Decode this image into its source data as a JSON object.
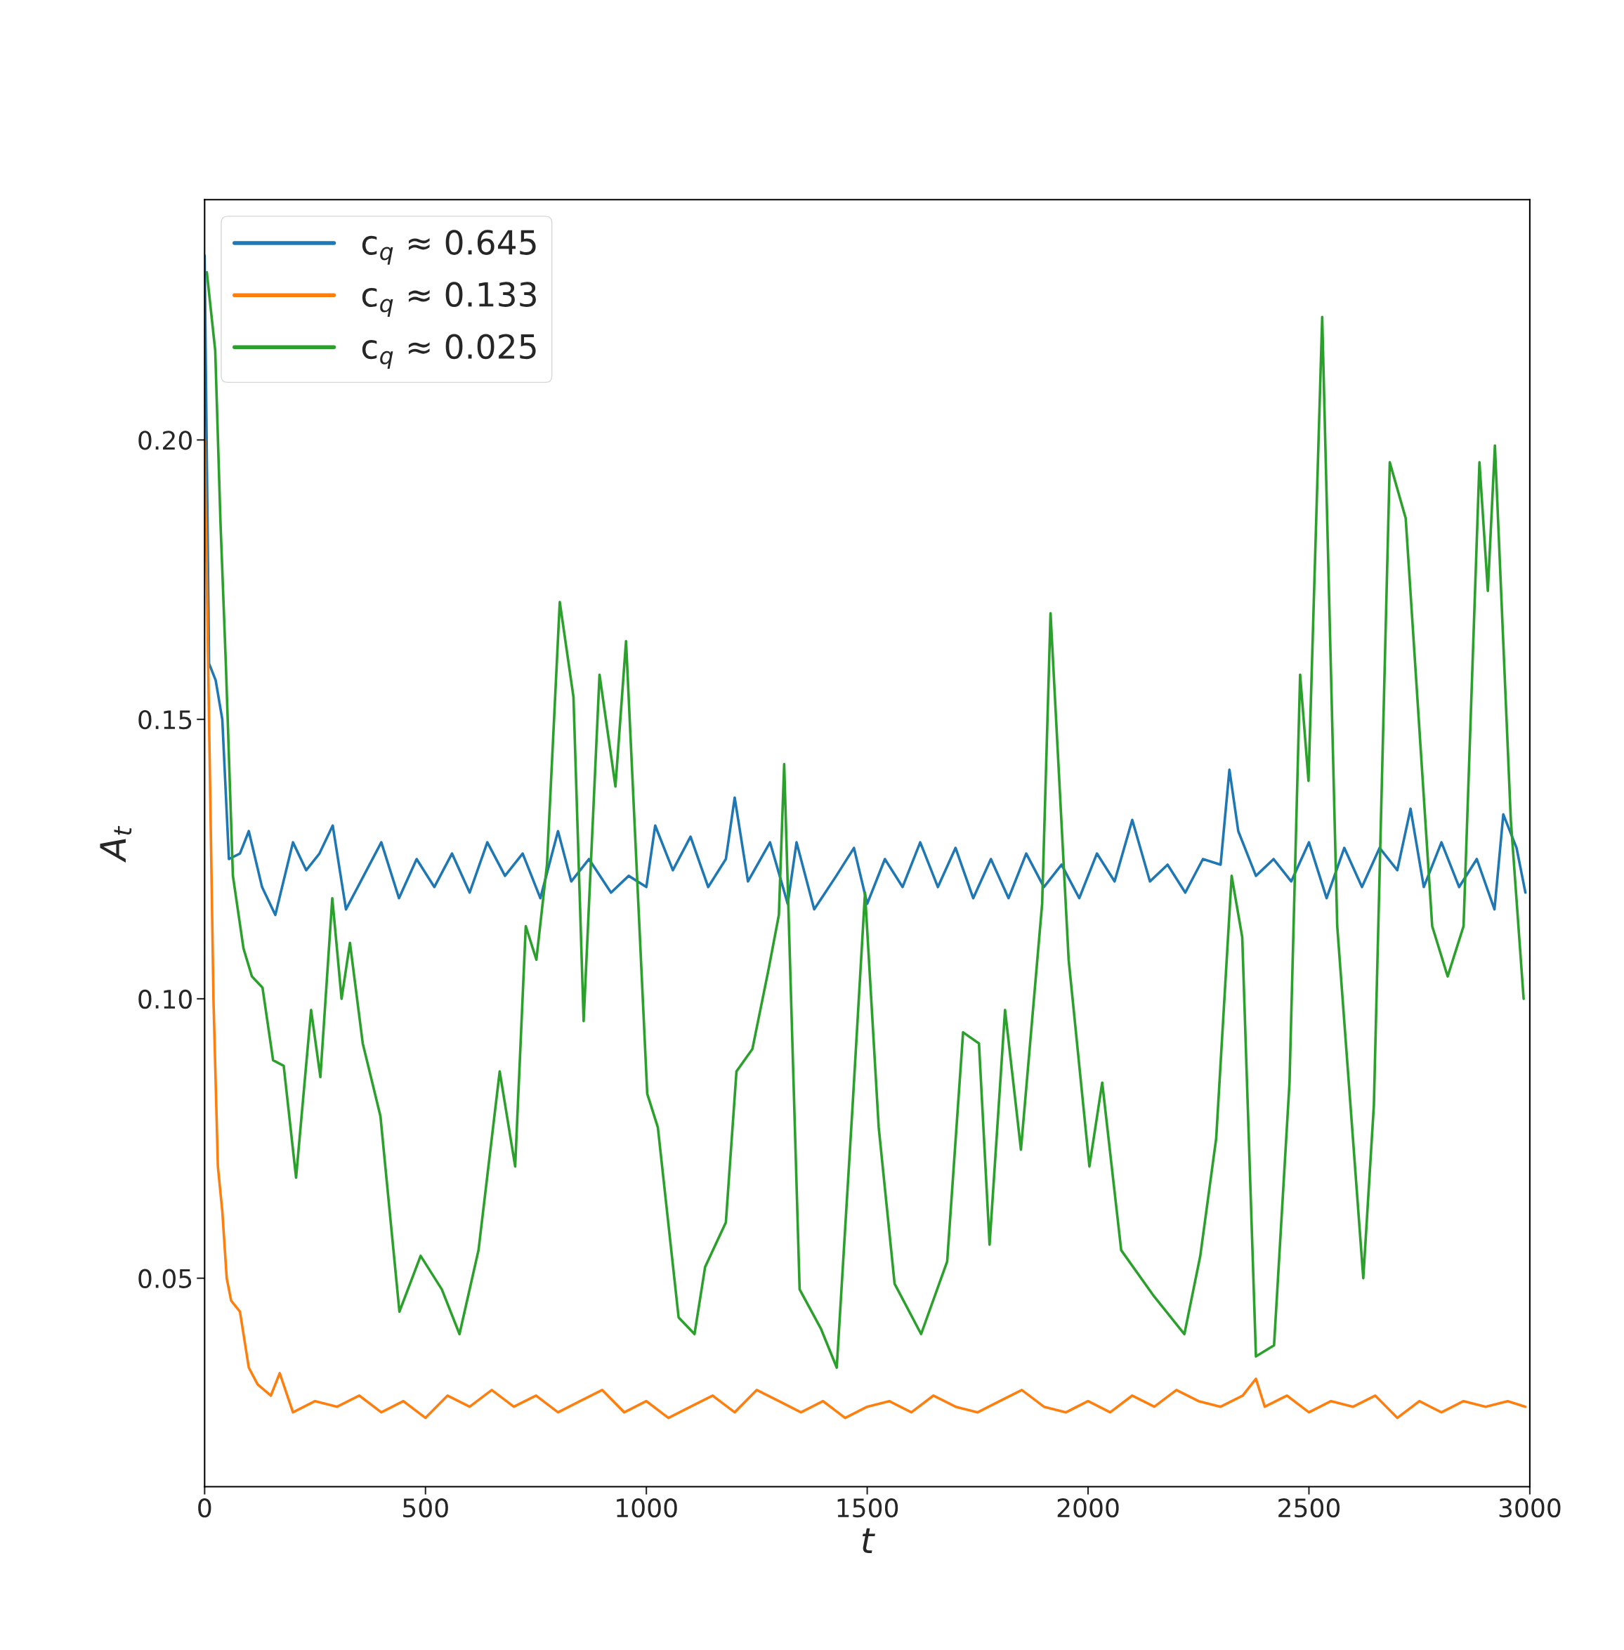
{
  "chart_data": {
    "type": "line",
    "xlabel": "t",
    "ylabel": "A$_{t}$",
    "xlim": [
      0,
      3000
    ],
    "ylim": [
      0.0127,
      0.243
    ],
    "xticks": [
      0,
      500,
      1000,
      1500,
      2000,
      2500,
      3000
    ],
    "yticks": [
      0.05,
      {
        "value": 0.1,
        "label": "0.10"
      },
      0.15,
      {
        "value": 0.2,
        "label": "0.20"
      }
    ],
    "grid": false,
    "legend": "top left",
    "marker": "none",
    "line_style": "solid",
    "series": [
      {
        "name": "c$_{q}$ ≈ 0.645",
        "color": "#1f77b4",
        "x": [
          0,
          10,
          25,
          40,
          55,
          80,
          100,
          130,
          160,
          200,
          230,
          260,
          290,
          320,
          360,
          400,
          440,
          480,
          520,
          560,
          600,
          640,
          680,
          720,
          760,
          800,
          830,
          870,
          920,
          960,
          1000,
          1020,
          1060,
          1100,
          1140,
          1180,
          1200,
          1230,
          1280,
          1320,
          1340,
          1380,
          1430,
          1470,
          1500,
          1540,
          1580,
          1620,
          1660,
          1700,
          1740,
          1780,
          1820,
          1860,
          1900,
          1940,
          1980,
          2020,
          2060,
          2100,
          2140,
          2180,
          2220,
          2260,
          2300,
          2320,
          2340,
          2380,
          2420,
          2460,
          2500,
          2540,
          2580,
          2620,
          2660,
          2700,
          2730,
          2760,
          2800,
          2840,
          2880,
          2920,
          2940,
          2970,
          2990
        ],
        "values": [
          0.233,
          0.16,
          0.157,
          0.15,
          0.125,
          0.126,
          0.13,
          0.12,
          0.115,
          0.128,
          0.123,
          0.126,
          0.131,
          0.116,
          0.122,
          0.128,
          0.118,
          0.125,
          0.12,
          0.126,
          0.119,
          0.128,
          0.122,
          0.126,
          0.118,
          0.13,
          0.121,
          0.125,
          0.119,
          0.122,
          0.12,
          0.131,
          0.123,
          0.129,
          0.12,
          0.125,
          0.136,
          0.121,
          0.128,
          0.117,
          0.128,
          0.116,
          0.122,
          0.127,
          0.117,
          0.125,
          0.12,
          0.128,
          0.12,
          0.127,
          0.118,
          0.125,
          0.118,
          0.126,
          0.12,
          0.124,
          0.118,
          0.126,
          0.121,
          0.132,
          0.121,
          0.124,
          0.119,
          0.125,
          0.124,
          0.141,
          0.13,
          0.122,
          0.125,
          0.121,
          0.128,
          0.118,
          0.127,
          0.12,
          0.127,
          0.123,
          0.134,
          0.12,
          0.128,
          0.12,
          0.125,
          0.116,
          0.133,
          0.127,
          0.119
        ]
      },
      {
        "name": "c$_{q}$ ≈ 0.133",
        "color": "#ff7f0e",
        "x": [
          0,
          10,
          20,
          30,
          40,
          50,
          60,
          80,
          100,
          120,
          150,
          170,
          200,
          250,
          300,
          350,
          400,
          450,
          500,
          550,
          600,
          650,
          700,
          750,
          800,
          850,
          900,
          950,
          1000,
          1050,
          1100,
          1150,
          1200,
          1250,
          1300,
          1350,
          1400,
          1450,
          1500,
          1550,
          1600,
          1650,
          1700,
          1750,
          1800,
          1850,
          1900,
          1950,
          2000,
          2050,
          2100,
          2150,
          2200,
          2250,
          2300,
          2350,
          2380,
          2400,
          2450,
          2500,
          2550,
          2600,
          2650,
          2700,
          2750,
          2800,
          2850,
          2900,
          2950,
          2990
        ],
        "values": [
          0.2,
          0.15,
          0.1,
          0.07,
          0.062,
          0.05,
          0.046,
          0.044,
          0.034,
          0.031,
          0.029,
          0.033,
          0.026,
          0.028,
          0.027,
          0.029,
          0.026,
          0.028,
          0.025,
          0.029,
          0.027,
          0.03,
          0.027,
          0.029,
          0.026,
          0.028,
          0.03,
          0.026,
          0.028,
          0.025,
          0.027,
          0.029,
          0.026,
          0.03,
          0.028,
          0.026,
          0.028,
          0.025,
          0.027,
          0.028,
          0.026,
          0.029,
          0.027,
          0.026,
          0.028,
          0.03,
          0.027,
          0.026,
          0.028,
          0.026,
          0.029,
          0.027,
          0.03,
          0.028,
          0.027,
          0.029,
          0.032,
          0.027,
          0.029,
          0.026,
          0.028,
          0.027,
          0.029,
          0.025,
          0.028,
          0.026,
          0.028,
          0.027,
          0.028,
          0.027
        ]
      },
      {
        "name": "c$_{q}$ ≈ 0.025",
        "color": "#2ca02c",
        "x": [
          5,
          24,
          36,
          48,
          64,
          88,
          107,
          131,
          155,
          179,
          207,
          241,
          262,
          289,
          310,
          329,
          358,
          398,
          441,
          489,
          537,
          577,
          620,
          668,
          703,
          727,
          751,
          775,
          804,
          835,
          858,
          894,
          930,
          954,
          1002,
          1026,
          1073,
          1109,
          1133,
          1180,
          1204,
          1240,
          1276,
          1300,
          1312,
          1347,
          1395,
          1431,
          1467,
          1495,
          1526,
          1562,
          1622,
          1681,
          1717,
          1753,
          1777,
          1812,
          1848,
          1896,
          1915,
          1956,
          2003,
          2032,
          2075,
          2147,
          2218,
          2254,
          2290,
          2325,
          2349,
          2380,
          2421,
          2456,
          2480,
          2499,
          2530,
          2564,
          2623,
          2647,
          2683,
          2719,
          2779,
          2814,
          2850,
          2886,
          2905,
          2921,
          2957,
          2986
        ],
        "values": [
          0.23,
          0.216,
          0.185,
          0.16,
          0.122,
          0.109,
          0.104,
          0.102,
          0.089,
          0.088,
          0.068,
          0.098,
          0.086,
          0.118,
          0.1,
          0.11,
          0.092,
          0.079,
          0.044,
          0.054,
          0.048,
          0.04,
          0.055,
          0.087,
          0.07,
          0.113,
          0.107,
          0.124,
          0.171,
          0.154,
          0.096,
          0.158,
          0.138,
          0.164,
          0.083,
          0.077,
          0.043,
          0.04,
          0.052,
          0.06,
          0.087,
          0.091,
          0.105,
          0.115,
          0.142,
          0.048,
          0.041,
          0.034,
          0.081,
          0.119,
          0.077,
          0.049,
          0.04,
          0.053,
          0.094,
          0.092,
          0.056,
          0.098,
          0.073,
          0.117,
          0.169,
          0.107,
          0.07,
          0.085,
          0.055,
          0.047,
          0.04,
          0.054,
          0.075,
          0.122,
          0.111,
          0.036,
          0.038,
          0.085,
          0.158,
          0.139,
          0.222,
          0.113,
          0.05,
          0.081,
          0.196,
          0.186,
          0.113,
          0.104,
          0.113,
          0.196,
          0.173,
          0.199,
          0.132,
          0.1
        ]
      }
    ]
  }
}
